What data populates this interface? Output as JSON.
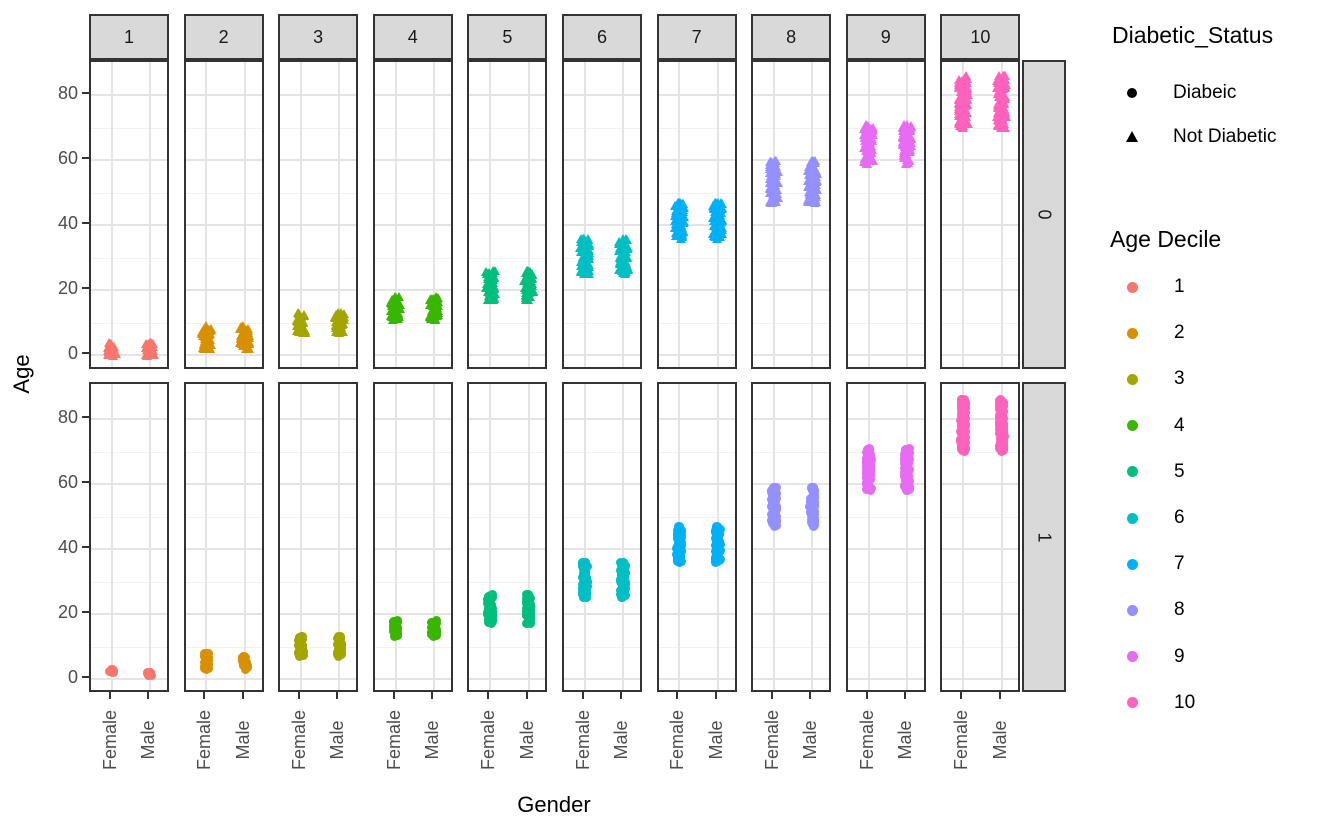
{
  "axes": {
    "x_title": "Gender",
    "y_title": "Age",
    "x_categories": [
      "Female",
      "Male"
    ],
    "y_tick_labels": [
      "0",
      "20",
      "40",
      "60",
      "80"
    ]
  },
  "facets": {
    "column_labels": [
      "1",
      "2",
      "3",
      "4",
      "5",
      "6",
      "7",
      "8",
      "9",
      "10"
    ],
    "row_labels": [
      "0",
      "1"
    ]
  },
  "legends": [
    {
      "title": "Diabetic_Status",
      "items": [
        {
          "label": "Diabeic",
          "shape": "circle",
          "color": "#000000"
        },
        {
          "label": "Not Diabetic",
          "shape": "triangle",
          "color": "#000000"
        }
      ]
    },
    {
      "title": "Age Decile",
      "items": [
        {
          "label": "1",
          "color": "#F8766D"
        },
        {
          "label": "2",
          "color": "#D89000"
        },
        {
          "label": "3",
          "color": "#A3A500"
        },
        {
          "label": "4",
          "color": "#39B600"
        },
        {
          "label": "5",
          "color": "#00BF7D"
        },
        {
          "label": "6",
          "color": "#00BFC4"
        },
        {
          "label": "7",
          "color": "#00B0F6"
        },
        {
          "label": "8",
          "color": "#9590FF"
        },
        {
          "label": "9",
          "color": "#E76BF3"
        },
        {
          "label": "10",
          "color": "#FF62BC"
        }
      ]
    }
  ],
  "style_colors": {
    "panel_border": "#333333",
    "strip_fill": "#d9d9d9",
    "grid_major": "#e4e4e4",
    "grid_minor": "#f1f1f1",
    "tick_text": "#4d4d4d"
  },
  "chart_data": {
    "type": "scatter",
    "title": "",
    "xlabel": "Gender",
    "ylabel": "Age",
    "x_categories": [
      "Female",
      "Male"
    ],
    "y_ticks": [
      0,
      20,
      40,
      60,
      80
    ],
    "ylim": [
      -5,
      90
    ],
    "facet_columns_variable_values": [
      "1",
      "2",
      "3",
      "4",
      "5",
      "6",
      "7",
      "8",
      "9",
      "10"
    ],
    "facet_rows_variable_values": [
      "0",
      "1"
    ],
    "row_marker_shapes": {
      "0": "triangle",
      "1": "circle"
    },
    "decile_colors": {
      "1": "#F8766D",
      "2": "#D89000",
      "3": "#A3A500",
      "4": "#39B600",
      "5": "#00BF7D",
      "6": "#00BFC4",
      "7": "#00B0F6",
      "8": "#9590FF",
      "9": "#E76BF3",
      "10": "#FF62BC"
    },
    "clusters": [
      {
        "decile": 1,
        "row": "0",
        "gender": "Female",
        "age_min": 0,
        "age_max": 4
      },
      {
        "decile": 1,
        "row": "0",
        "gender": "Male",
        "age_min": 0,
        "age_max": 4
      },
      {
        "decile": 2,
        "row": "0",
        "gender": "Female",
        "age_min": 2,
        "age_max": 9
      },
      {
        "decile": 2,
        "row": "0",
        "gender": "Male",
        "age_min": 2,
        "age_max": 9
      },
      {
        "decile": 3,
        "row": "0",
        "gender": "Female",
        "age_min": 7,
        "age_max": 13
      },
      {
        "decile": 3,
        "row": "0",
        "gender": "Male",
        "age_min": 7,
        "age_max": 13
      },
      {
        "decile": 4,
        "row": "0",
        "gender": "Female",
        "age_min": 11,
        "age_max": 18
      },
      {
        "decile": 4,
        "row": "0",
        "gender": "Male",
        "age_min": 11,
        "age_max": 18
      },
      {
        "decile": 5,
        "row": "0",
        "gender": "Female",
        "age_min": 17,
        "age_max": 26
      },
      {
        "decile": 5,
        "row": "0",
        "gender": "Male",
        "age_min": 17,
        "age_max": 26
      },
      {
        "decile": 6,
        "row": "0",
        "gender": "Female",
        "age_min": 25,
        "age_max": 36
      },
      {
        "decile": 6,
        "row": "0",
        "gender": "Male",
        "age_min": 25,
        "age_max": 36
      },
      {
        "decile": 7,
        "row": "0",
        "gender": "Female",
        "age_min": 36,
        "age_max": 47
      },
      {
        "decile": 7,
        "row": "0",
        "gender": "Male",
        "age_min": 36,
        "age_max": 47
      },
      {
        "decile": 8,
        "row": "0",
        "gender": "Female",
        "age_min": 47,
        "age_max": 60
      },
      {
        "decile": 8,
        "row": "0",
        "gender": "Male",
        "age_min": 47,
        "age_max": 60
      },
      {
        "decile": 9,
        "row": "0",
        "gender": "Female",
        "age_min": 59,
        "age_max": 71
      },
      {
        "decile": 9,
        "row": "0",
        "gender": "Male",
        "age_min": 59,
        "age_max": 71
      },
      {
        "decile": 10,
        "row": "0",
        "gender": "Female",
        "age_min": 70,
        "age_max": 86
      },
      {
        "decile": 10,
        "row": "0",
        "gender": "Male",
        "age_min": 70,
        "age_max": 86
      },
      {
        "decile": 1,
        "row": "1",
        "gender": "Female",
        "age_min": 2,
        "age_max": 3
      },
      {
        "decile": 1,
        "row": "1",
        "gender": "Male",
        "age_min": 1,
        "age_max": 2
      },
      {
        "decile": 2,
        "row": "1",
        "gender": "Female",
        "age_min": 3,
        "age_max": 8
      },
      {
        "decile": 2,
        "row": "1",
        "gender": "Male",
        "age_min": 3,
        "age_max": 7
      },
      {
        "decile": 3,
        "row": "1",
        "gender": "Female",
        "age_min": 7,
        "age_max": 13
      },
      {
        "decile": 3,
        "row": "1",
        "gender": "Male",
        "age_min": 7,
        "age_max": 13
      },
      {
        "decile": 4,
        "row": "1",
        "gender": "Female",
        "age_min": 13,
        "age_max": 18
      },
      {
        "decile": 4,
        "row": "1",
        "gender": "Male",
        "age_min": 13,
        "age_max": 18
      },
      {
        "decile": 5,
        "row": "1",
        "gender": "Female",
        "age_min": 17,
        "age_max": 26
      },
      {
        "decile": 5,
        "row": "1",
        "gender": "Male",
        "age_min": 17,
        "age_max": 26
      },
      {
        "decile": 6,
        "row": "1",
        "gender": "Female",
        "age_min": 25,
        "age_max": 36
      },
      {
        "decile": 6,
        "row": "1",
        "gender": "Male",
        "age_min": 25,
        "age_max": 36
      },
      {
        "decile": 7,
        "row": "1",
        "gender": "Female",
        "age_min": 36,
        "age_max": 47
      },
      {
        "decile": 7,
        "row": "1",
        "gender": "Male",
        "age_min": 36,
        "age_max": 47
      },
      {
        "decile": 8,
        "row": "1",
        "gender": "Female",
        "age_min": 47,
        "age_max": 59
      },
      {
        "decile": 8,
        "row": "1",
        "gender": "Male",
        "age_min": 47,
        "age_max": 59
      },
      {
        "decile": 9,
        "row": "1",
        "gender": "Female",
        "age_min": 58,
        "age_max": 71
      },
      {
        "decile": 9,
        "row": "1",
        "gender": "Male",
        "age_min": 58,
        "age_max": 71
      },
      {
        "decile": 10,
        "row": "1",
        "gender": "Female",
        "age_min": 70,
        "age_max": 86
      },
      {
        "decile": 10,
        "row": "1",
        "gender": "Male",
        "age_min": 70,
        "age_max": 86
      }
    ]
  }
}
